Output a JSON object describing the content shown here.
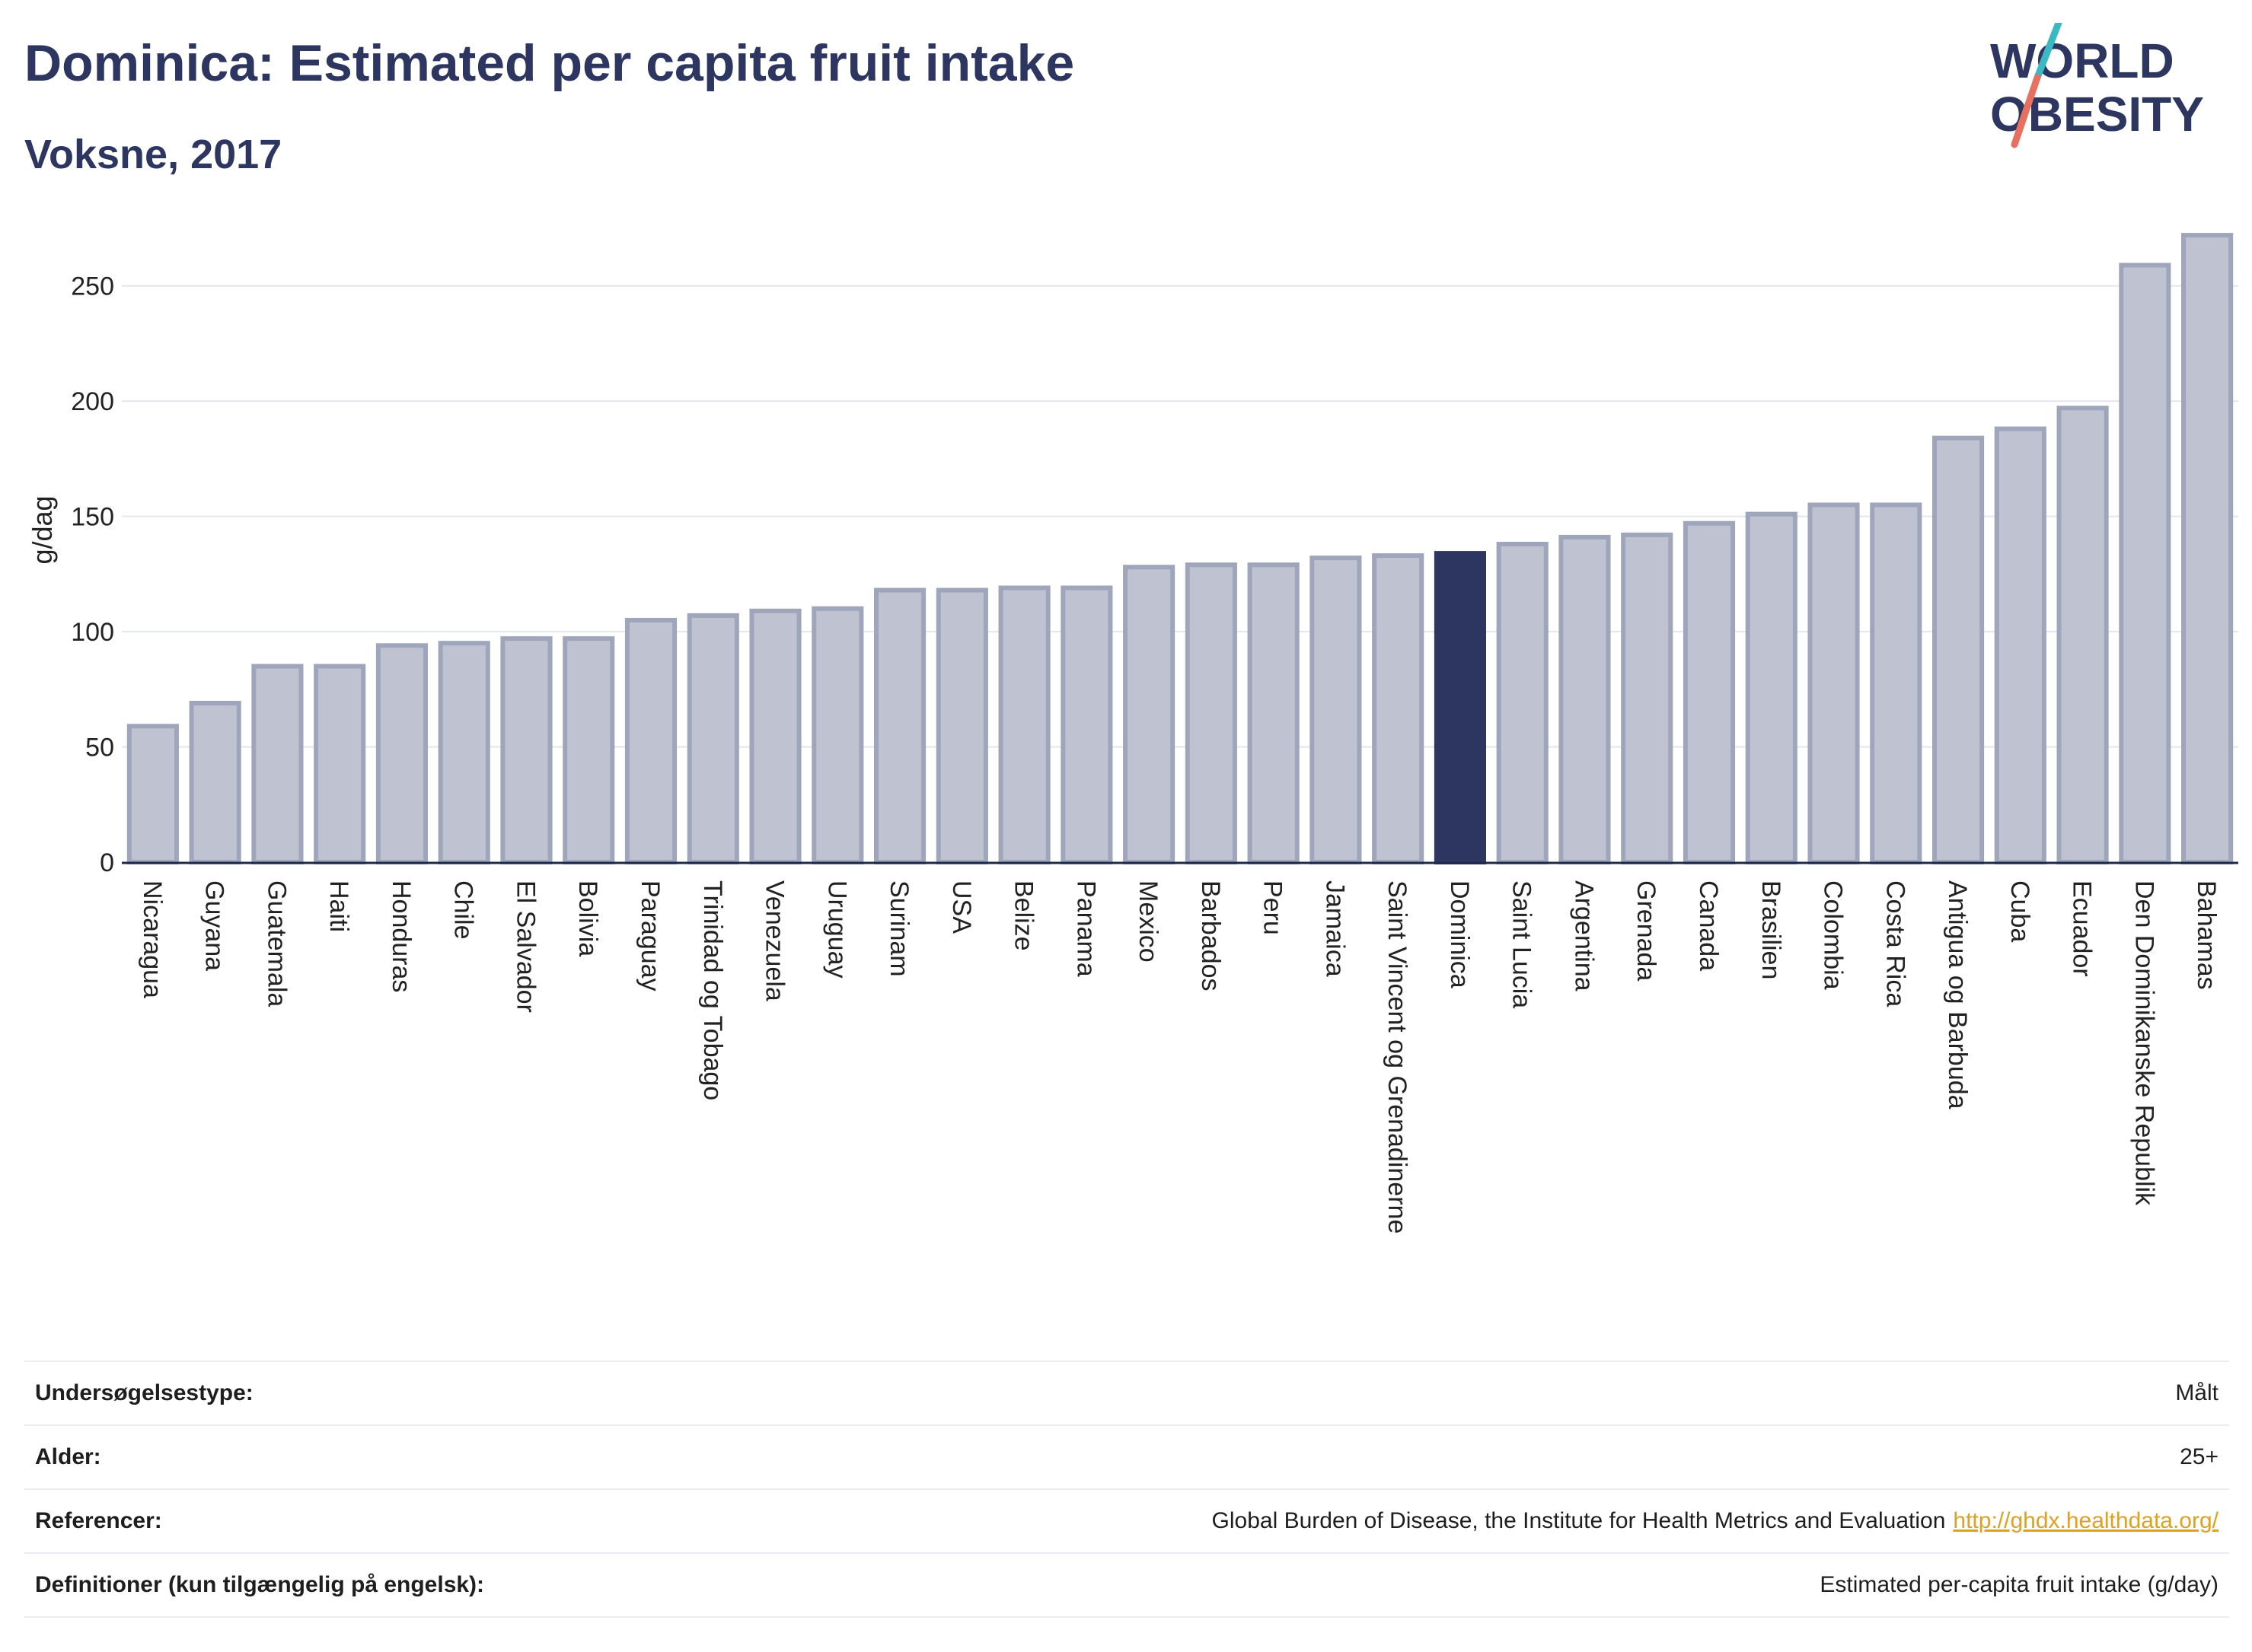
{
  "header": {
    "title": "Dominica: Estimated per capita fruit intake",
    "subtitle": "Voksne, 2017"
  },
  "logo": {
    "line1": "WORLD",
    "line2": "OBESITY",
    "colors": {
      "text": "#2d3561",
      "slash_teal": "#3bb8c4",
      "slash_coral": "#e87060"
    }
  },
  "chart_data": {
    "type": "bar",
    "title": "Dominica: Estimated per capita fruit intake",
    "subtitle": "Voksne, 2017",
    "xlabel": "",
    "ylabel": "g/dag",
    "ylim": [
      0,
      275
    ],
    "yticks": [
      0,
      50,
      100,
      150,
      200,
      250
    ],
    "grid": true,
    "highlight": "Dominica",
    "colors": {
      "bar": "#bfc3d1",
      "bar_border": "#9fa5bb",
      "highlight": "#2d3561"
    },
    "categories": [
      "Nicaragua",
      "Guyana",
      "Guatemala",
      "Haiti",
      "Honduras",
      "Chile",
      "El Salvador",
      "Bolivia",
      "Paraguay",
      "Trinidad og Tobago",
      "Venezuela",
      "Uruguay",
      "Surinam",
      "USA",
      "Belize",
      "Panama",
      "Mexico",
      "Barbados",
      "Peru",
      "Jamaica",
      "Saint Vincent og Grenadinerne",
      "Dominica",
      "Saint Lucia",
      "Argentina",
      "Grenada",
      "Canada",
      "Brasilien",
      "Colombia",
      "Costa Rica",
      "Antigua og Barbuda",
      "Cuba",
      "Ecuador",
      "Den Dominikanske Republik",
      "Bahamas"
    ],
    "values": [
      59,
      69,
      85,
      85,
      94,
      95,
      97,
      97,
      105,
      107,
      109,
      110,
      118,
      118,
      119,
      119,
      128,
      129,
      129,
      132,
      133,
      134,
      138,
      141,
      142,
      147,
      151,
      155,
      155,
      184,
      188,
      197,
      259,
      272
    ]
  },
  "info_table": [
    {
      "label": "Undersøgelsestype:",
      "value": "Målt"
    },
    {
      "label": "Alder:",
      "value": "25+"
    },
    {
      "label": "Referencer:",
      "value": "Global Burden of Disease, the Institute for Health Metrics and Evaluation",
      "link": "http://ghdx.healthdata.org/"
    },
    {
      "label": "Definitioner (kun tilgængelig på engelsk):",
      "value": "Estimated per-capita fruit intake (g/day)"
    }
  ]
}
